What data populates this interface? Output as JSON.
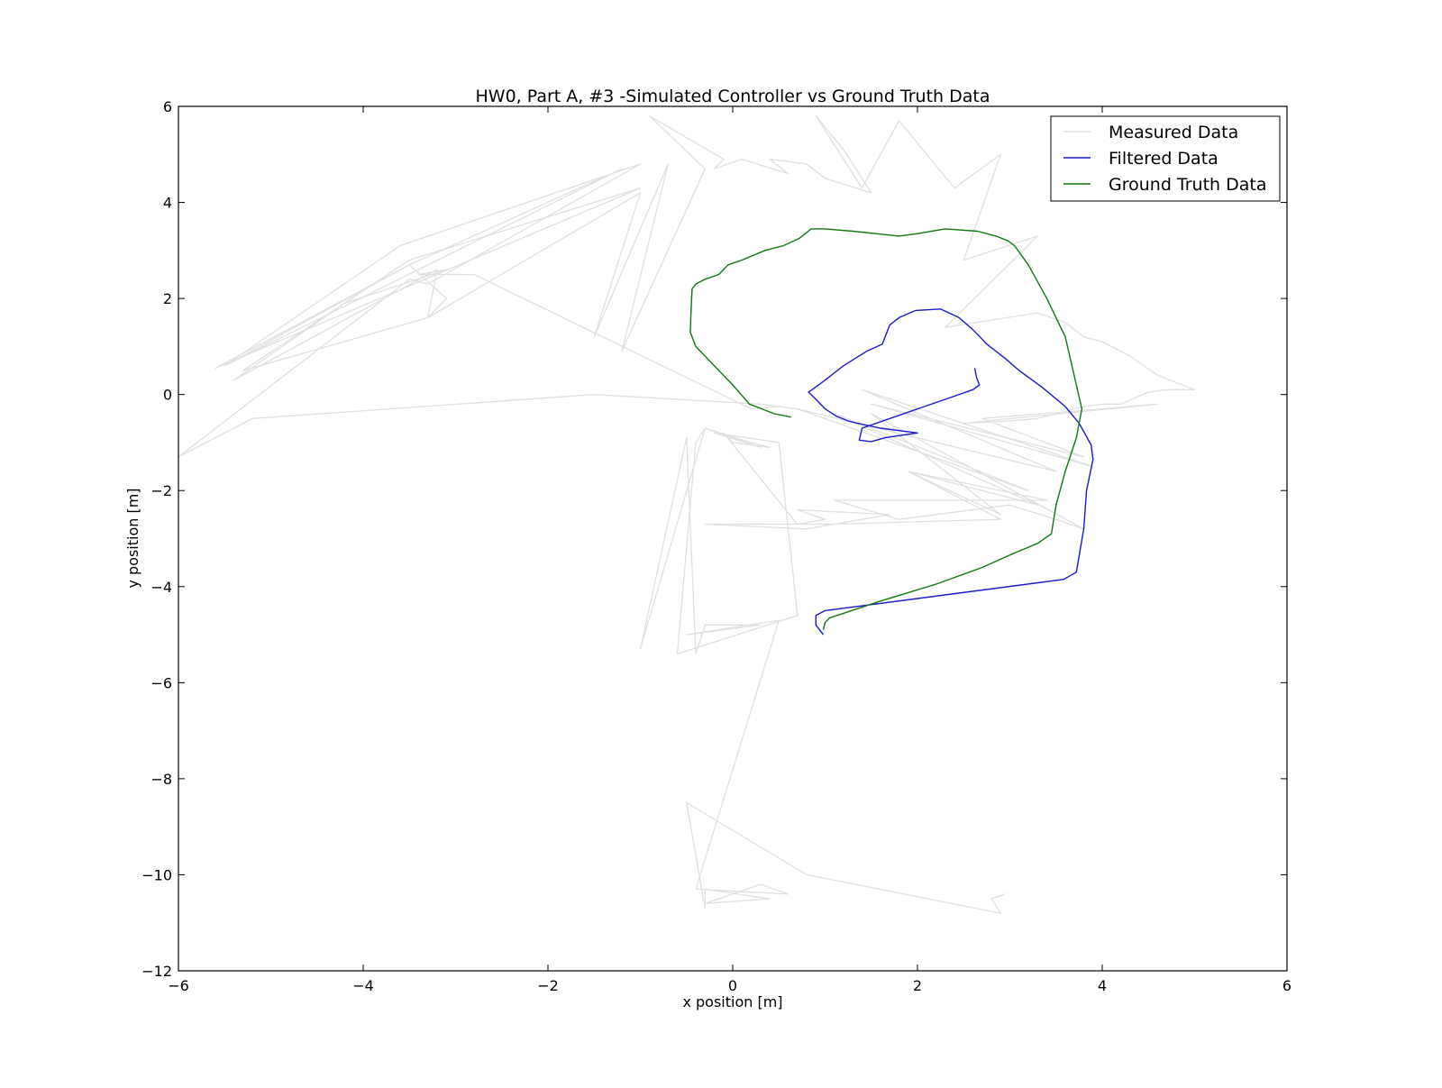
{
  "chart_data": {
    "type": "line",
    "title": "HW0, Part A, #3 -Simulated Controller vs Ground Truth Data",
    "xlabel": "x position [m]",
    "ylabel": "y position [m]",
    "xlim": [
      -6,
      6
    ],
    "ylim": [
      -12,
      6
    ],
    "xticks": [
      -6,
      -4,
      -2,
      0,
      2,
      4,
      6
    ],
    "yticks": [
      -12,
      -10,
      -8,
      -6,
      -4,
      -2,
      0,
      2,
      4,
      6
    ],
    "xtick_labels": [
      "−6",
      "−4",
      "−2",
      "0",
      "2",
      "4",
      "6"
    ],
    "ytick_labels": [
      "−12",
      "−10",
      "−8",
      "−6",
      "−4",
      "−2",
      "0",
      "2",
      "4",
      "6"
    ],
    "grid": false,
    "legend_position": "top-right",
    "series": [
      {
        "name": "Measured Data",
        "color": "#e0e0e0",
        "x": [
          -5.5,
          -3.5,
          -3.1,
          -3.3,
          -5.3,
          -3.5,
          -1.0,
          -5.6,
          -3.5,
          -1.2,
          -5.5,
          -3.6,
          -1.0,
          -3.3,
          -3.5,
          -6.0,
          -5.2,
          -1.5,
          0.3,
          0.7,
          0.5,
          0.2,
          -2.8,
          -3.4,
          -3.1,
          -4.2,
          -5.4,
          -3.2,
          -3.3,
          -1.0,
          -1.5,
          -0.7,
          -1.2,
          -0.3,
          -0.9,
          -0.1,
          -0.2,
          0.1,
          0.6,
          0.4,
          0.8,
          1.0,
          1.5,
          1.2,
          0.9,
          1.3,
          1.4,
          1.8,
          2.4,
          2.9,
          2.5,
          3.3,
          2.3,
          3.3,
          3.6,
          3.8,
          4.0,
          4.3,
          4.6,
          5.0,
          4.7,
          4.5,
          4.2,
          4.0,
          3.8,
          3.7,
          3.5,
          3.3,
          3.0,
          2.5,
          4.6,
          4.0,
          2.7,
          3.8,
          1.5,
          3.9,
          1.4,
          3.5,
          0.7,
          3.2,
          1.1,
          3.3,
          1.9,
          2.9,
          1.5,
          3.8,
          3.5,
          3.0,
          1.8,
          1.1,
          3.4,
          1.9,
          2.9,
          1.1,
          -0.3,
          0.8,
          1.7,
          0.7,
          1.0,
          0.7,
          -0.1,
          0.0,
          0.4,
          0.2,
          -0.3,
          0.3,
          -0.2,
          0.5,
          0.7,
          -0.6,
          -0.4,
          -0.3,
          -1.0,
          -0.5,
          -0.4,
          -0.3,
          0.3,
          -0.5,
          0.5,
          -0.4,
          0.6,
          0.3,
          -0.3,
          0.4,
          -0.3,
          -0.3,
          -0.5,
          0.8,
          2.9,
          2.8,
          2.95
        ],
        "y": [
          0.6,
          2.7,
          2.0,
          1.6,
          0.5,
          2.8,
          4.3,
          0.55,
          2.7,
          4.7,
          0.6,
          3.1,
          4.8,
          2.3,
          2.4,
          -1.3,
          -0.5,
          0.0,
          -0.2,
          -0.3,
          -0.25,
          -0.3,
          2.5,
          2.5,
          2.6,
          1.9,
          0.3,
          2.6,
          1.6,
          4.2,
          1.2,
          4.8,
          0.9,
          4.7,
          5.8,
          4.9,
          4.7,
          4.9,
          4.6,
          4.9,
          4.8,
          4.5,
          4.2,
          5.1,
          5.8,
          4.6,
          4.3,
          5.7,
          4.3,
          5.0,
          2.8,
          3.3,
          1.4,
          1.7,
          1.5,
          1.2,
          1.1,
          0.8,
          0.4,
          0.1,
          0.1,
          0.05,
          -0.2,
          -0.2,
          -0.25,
          -0.3,
          -0.4,
          -0.5,
          -0.55,
          -0.6,
          -0.2,
          -0.3,
          -0.5,
          -1.3,
          -0.2,
          -1.5,
          0.1,
          -1.6,
          -0.3,
          -2.0,
          -0.4,
          -2.3,
          -1.6,
          -2.5,
          -0.4,
          -2.8,
          -2.6,
          -2.3,
          -2.6,
          -2.2,
          -2.2,
          -1.6,
          -2.6,
          -2.7,
          -2.7,
          -2.8,
          -2.5,
          -2.4,
          -2.6,
          -2.7,
          -0.8,
          -1.0,
          -1.1,
          -1.0,
          -0.7,
          -1.1,
          -0.8,
          -1.0,
          -4.6,
          -5.4,
          -1.0,
          -0.7,
          -5.3,
          -0.9,
          -5.4,
          -4.8,
          -4.8,
          -5.0,
          -4.7,
          -10.3,
          -10.4,
          -10.2,
          -10.6,
          -10.5,
          -10.3,
          -10.7,
          -8.5,
          -10.0,
          -10.8,
          -10.5,
          -10.4
        ]
      },
      {
        "name": "Filtered Data",
        "color": "#1a1ad1",
        "x": [
          2.62,
          2.64,
          2.67,
          2.6,
          2.3,
          2.0,
          1.7,
          1.4,
          1.37,
          1.5,
          1.65,
          2.0,
          1.6,
          1.35,
          1.25,
          1.12,
          1.0,
          0.9,
          0.82,
          0.86,
          1.0,
          1.2,
          1.45,
          1.62,
          1.7,
          1.8,
          1.98,
          2.25,
          2.45,
          2.6,
          2.75,
          2.95,
          3.1,
          3.35,
          3.6,
          3.75,
          3.88,
          3.9,
          3.83,
          3.8,
          3.72,
          3.58,
          1.0,
          0.9,
          0.9,
          0.98
        ],
        "y": [
          0.55,
          0.35,
          0.2,
          0.1,
          -0.1,
          -0.3,
          -0.5,
          -0.7,
          -0.95,
          -0.98,
          -0.9,
          -0.8,
          -0.7,
          -0.6,
          -0.55,
          -0.45,
          -0.3,
          -0.1,
          0.05,
          0.1,
          0.3,
          0.6,
          0.9,
          1.05,
          1.45,
          1.6,
          1.75,
          1.78,
          1.6,
          1.35,
          1.05,
          0.75,
          0.5,
          0.15,
          -0.25,
          -0.6,
          -1.05,
          -1.35,
          -2.0,
          -2.8,
          -3.7,
          -3.85,
          -4.5,
          -4.6,
          -4.8,
          -5.0
        ]
      },
      {
        "name": "Ground Truth Data",
        "color": "#117711",
        "x": [
          0.63,
          0.45,
          0.25,
          0.18,
          0.0,
          -0.2,
          -0.4,
          -0.46,
          -0.45,
          -0.44,
          -0.4,
          -0.3,
          -0.15,
          -0.1,
          -0.05,
          0.1,
          0.35,
          0.55,
          0.72,
          0.85,
          1.0,
          1.3,
          1.55,
          1.8,
          2.0,
          2.3,
          2.65,
          2.85,
          2.98,
          3.05,
          3.2,
          3.4,
          3.6,
          3.78,
          3.72,
          3.6,
          3.5,
          3.45,
          3.3,
          3.05,
          2.7,
          2.2,
          1.6,
          1.05,
          1.0,
          0.98
        ],
        "y": [
          -0.47,
          -0.4,
          -0.25,
          -0.2,
          0.2,
          0.6,
          1.0,
          1.3,
          1.8,
          2.2,
          2.3,
          2.4,
          2.5,
          2.6,
          2.7,
          2.8,
          3.0,
          3.1,
          3.25,
          3.45,
          3.45,
          3.4,
          3.35,
          3.3,
          3.35,
          3.45,
          3.4,
          3.3,
          3.2,
          3.1,
          2.7,
          2.0,
          1.2,
          -0.3,
          -0.9,
          -1.6,
          -2.3,
          -2.9,
          -3.1,
          -3.3,
          -3.6,
          -3.95,
          -4.3,
          -4.65,
          -4.75,
          -4.9
        ]
      }
    ]
  }
}
